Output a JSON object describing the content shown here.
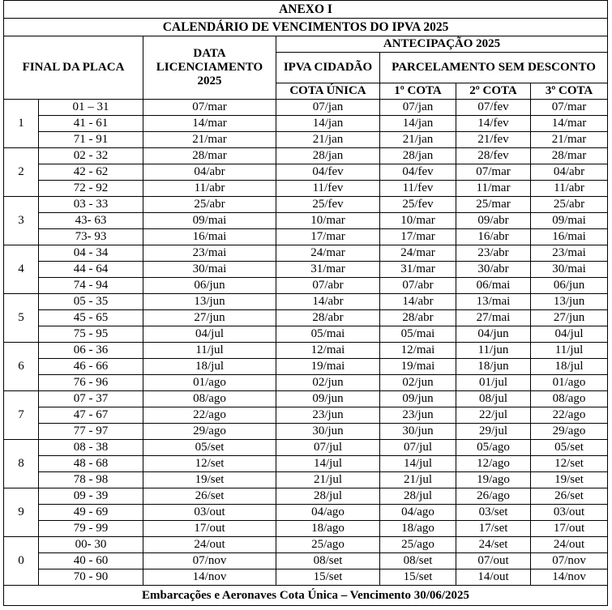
{
  "annex_title": "ANEXO I",
  "calendar_title": "CALENDÁRIO DE VENCIMENTOS DO IPVA 2025",
  "headers": {
    "final_placa": "FINAL DA PLACA",
    "data_licenciamento": "DATA LICENCIAMENTO 2025",
    "antecipacao": "ANTECIPAÇÃO 2025",
    "ipva_cidadao": "IPVA CIDADÃO",
    "parcelamento": "PARCELAMENTO SEM DESCONTO",
    "cota_unica": "COTA ÚNICA",
    "cota1": "1º COTA",
    "cota2": "2º COTA",
    "cota3": "3º COTA"
  },
  "groups": [
    {
      "final": "1",
      "rows": [
        [
          "01 – 31",
          "07/mar",
          "07/jan",
          "07/jan",
          "07/fev",
          "07/mar"
        ],
        [
          "41 - 61",
          "14/mar",
          "14/jan",
          "14/jan",
          "14/fev",
          "14/mar"
        ],
        [
          "71 - 91",
          "21/mar",
          "21/jan",
          "21/jan",
          "21/fev",
          "21/mar"
        ]
      ]
    },
    {
      "final": "2",
      "rows": [
        [
          "02 - 32",
          "28/mar",
          "28/jan",
          "28/jan",
          "28/fev",
          "28/mar"
        ],
        [
          "42 - 62",
          "04/abr",
          "04/fev",
          "04/fev",
          "07/mar",
          "04/abr"
        ],
        [
          "72 - 92",
          "11/abr",
          "11/fev",
          "11/fev",
          "11/mar",
          "11/abr"
        ]
      ]
    },
    {
      "final": "3",
      "rows": [
        [
          "03 - 33",
          "25/abr",
          "25/fev",
          "25/fev",
          "25/mar",
          "25/abr"
        ],
        [
          "43- 63",
          "09/mai",
          "10/mar",
          "10/mar",
          "09/abr",
          "09/mai"
        ],
        [
          "73- 93",
          "16/mai",
          "17/mar",
          "17/mar",
          "16/abr",
          "16/mai"
        ]
      ]
    },
    {
      "final": "4",
      "rows": [
        [
          "04 - 34",
          "23/mai",
          "24/mar",
          "24/mar",
          "23/abr",
          "23/mai"
        ],
        [
          "44 - 64",
          "30/mai",
          "31/mar",
          "31/mar",
          "30/abr",
          "30/mai"
        ],
        [
          "74 - 94",
          "06/jun",
          "07/abr",
          "07/abr",
          "06/mai",
          "06/jun"
        ]
      ]
    },
    {
      "final": "5",
      "rows": [
        [
          "05 - 35",
          "13/jun",
          "14/abr",
          "14/abr",
          "13/mai",
          "13/jun"
        ],
        [
          "45 - 65",
          "27/jun",
          "28/abr",
          "28/abr",
          "27/mai",
          "27/jun"
        ],
        [
          "75 - 95",
          "04/jul",
          "05/mai",
          "05/mai",
          "04/jun",
          "04/jul"
        ]
      ]
    },
    {
      "final": "6",
      "rows": [
        [
          "06 - 36",
          "11/jul",
          "12/mai",
          "12/mai",
          "11/jun",
          "11/jul"
        ],
        [
          "46 - 66",
          "18/jul",
          "19/mai",
          "19/mai",
          "18/jun",
          "18/jul"
        ],
        [
          "76 - 96",
          "01/ago",
          "02/jun",
          "02/jun",
          "01/jul",
          "01/ago"
        ]
      ]
    },
    {
      "final": "7",
      "rows": [
        [
          "07 - 37",
          "08/ago",
          "09/jun",
          "09/jun",
          "08/jul",
          "08/ago"
        ],
        [
          "47 - 67",
          "22/ago",
          "23/jun",
          "23/jun",
          "22/jul",
          "22/ago"
        ],
        [
          "77 - 97",
          "29/ago",
          "30/jun",
          "30/jun",
          "29/jul",
          "29/ago"
        ]
      ]
    },
    {
      "final": "8",
      "rows": [
        [
          "08 - 38",
          "05/set",
          "07/jul",
          "07/jul",
          "05/ago",
          "05/set"
        ],
        [
          "48 - 68",
          "12/set",
          "14/jul",
          "14/jul",
          "12/ago",
          "12/set"
        ],
        [
          "78 - 98",
          "19/set",
          "21/jul",
          "21/jul",
          "19/ago",
          "19/set"
        ]
      ]
    },
    {
      "final": "9",
      "rows": [
        [
          "09 - 39",
          "26/set",
          "28/jul",
          "28/jul",
          "26/ago",
          "26/set"
        ],
        [
          "49 - 69",
          "03/out",
          "04/ago",
          "04/ago",
          "03/set",
          "03/out"
        ],
        [
          "79 - 99",
          "17/out",
          "18/ago",
          "18/ago",
          "17/set",
          "17/out"
        ]
      ]
    },
    {
      "final": "0",
      "rows": [
        [
          "00- 30",
          "24/out",
          "25/ago",
          "25/ago",
          "24/set",
          "24/out"
        ],
        [
          "40 - 60",
          "07/nov",
          "08/set",
          "08/set",
          "07/out",
          "07/nov"
        ],
        [
          "70 - 90",
          "14/nov",
          "15/set",
          "15/set",
          "14/out",
          "14/nov"
        ]
      ]
    }
  ],
  "footer": "Embarcações e Aeronaves Cota Única – Vencimento 30/06/2025"
}
